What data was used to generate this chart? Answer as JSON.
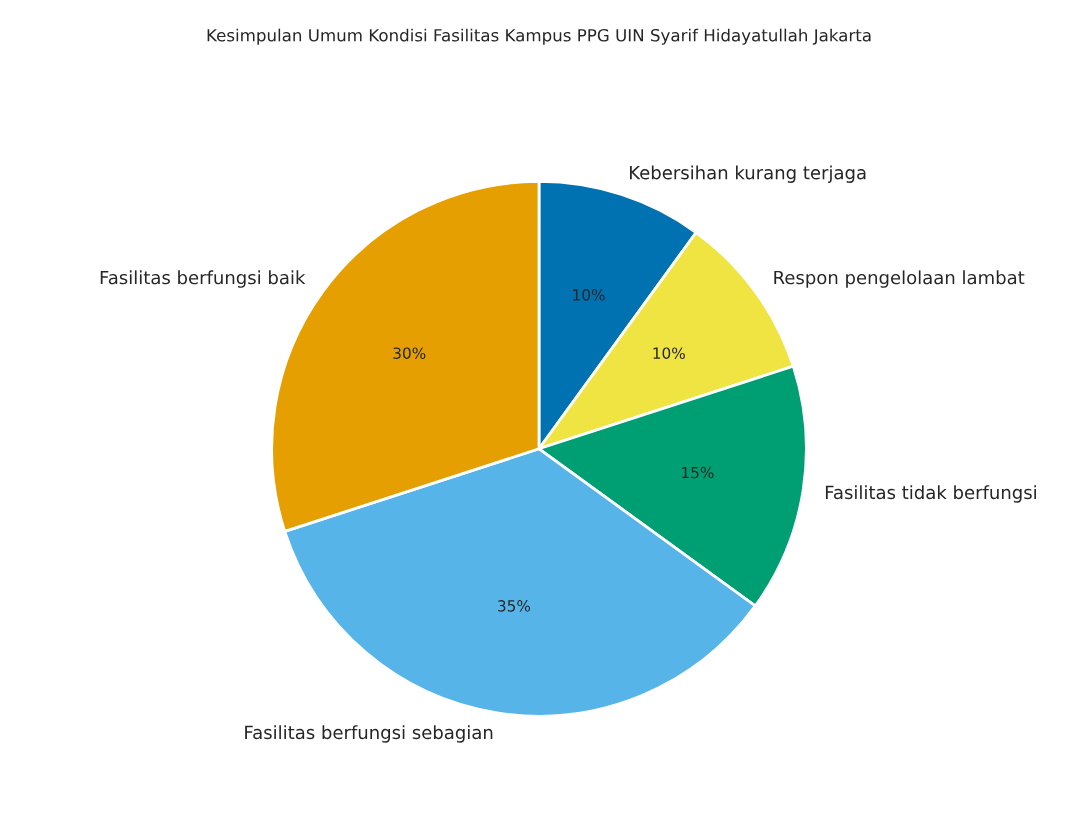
{
  "chart_data": {
    "type": "pie",
    "title": "Kesimpulan Umum Kondisi Fasilitas Kampus PPG UIN Syarif Hidayatullah Jakarta",
    "categories": [
      "Kebersihan kurang terjaga",
      "Respon pengelolaan lambat",
      "Fasilitas tidak berfungsi",
      "Fasilitas berfungsi sebagian",
      "Fasilitas berfungsi baik"
    ],
    "values": [
      10,
      10,
      15,
      35,
      30
    ],
    "colors": [
      "#0072b2",
      "#f0e442",
      "#009e73",
      "#56b4e9",
      "#e69f00"
    ],
    "value_labels": [
      "10%",
      "10%",
      "15%",
      "35%",
      "30%"
    ]
  }
}
